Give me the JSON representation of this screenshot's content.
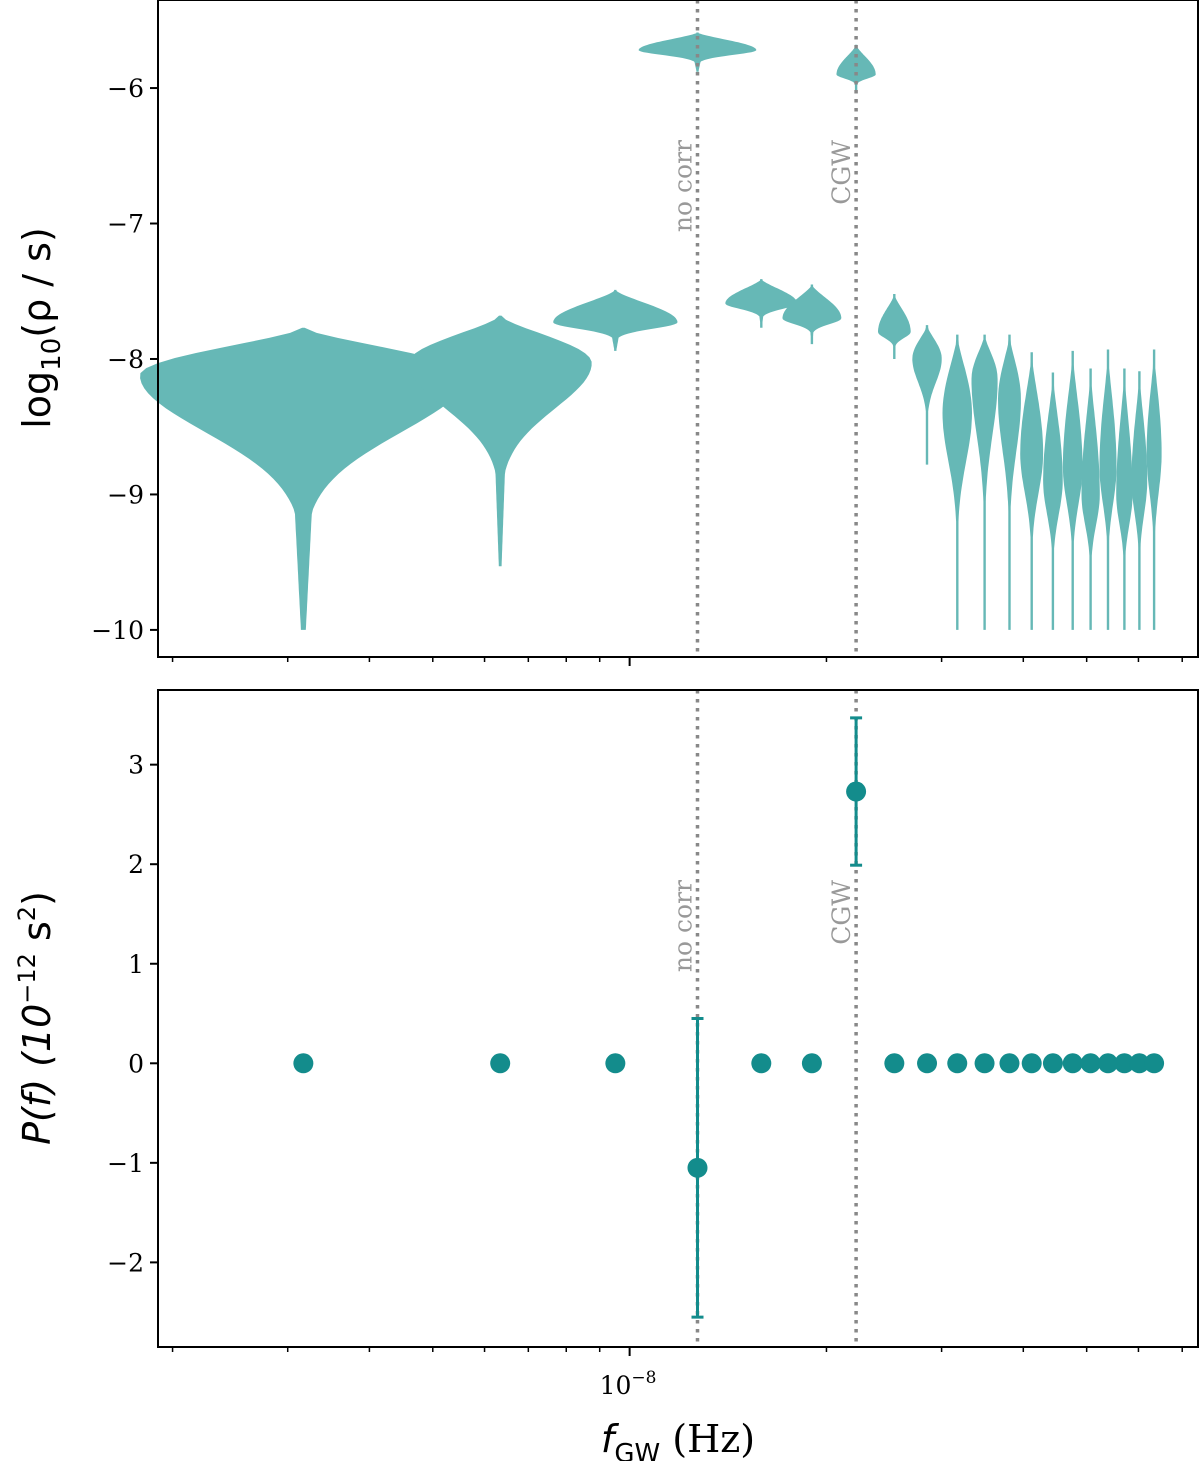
{
  "chart_data": [
    {
      "panel": "top",
      "type": "violin",
      "ylabel": "log10(ρ / s)",
      "ylabel_main": "log",
      "ylabel_sub": "10",
      "ylabel_rest": "(ρ / s)",
      "ylim": [
        -10.2,
        -5.35
      ],
      "yticks": [
        -6,
        -7,
        -8,
        -9,
        -10
      ],
      "ytick_labels": [
        "−6",
        "−7",
        "−8",
        "−9",
        "−10"
      ],
      "color": "#66b8b6",
      "violins": [
        {
          "f": 3.17e-09,
          "top": -7.77,
          "peak": -8.12,
          "bottom": -10.0,
          "width": 0.5
        },
        {
          "f": 6.34e-09,
          "top": -7.68,
          "peak": -8.03,
          "bottom": -9.53,
          "width": 0.28
        },
        {
          "f": 9.51e-09,
          "top": -7.49,
          "peak": -7.73,
          "bottom": -7.94,
          "width": 0.19
        },
        {
          "f": 1.27e-08,
          "top": -5.59,
          "peak": -5.72,
          "bottom": -5.88,
          "width": 0.18
        },
        {
          "f": 1.59e-08,
          "top": -7.41,
          "peak": -7.59,
          "bottom": -7.77,
          "width": 0.11
        },
        {
          "f": 1.9e-08,
          "top": -7.45,
          "peak": -7.7,
          "bottom": -7.89,
          "width": 0.09
        },
        {
          "f": 2.22e-08,
          "top": -5.68,
          "peak": -5.9,
          "bottom": -6.03,
          "width": 0.06
        },
        {
          "f": 2.54e-08,
          "top": -7.52,
          "peak": -7.8,
          "bottom": -8.0,
          "width": 0.05
        },
        {
          "f": 2.85e-08,
          "top": -7.75,
          "peak": -8.0,
          "bottom": -8.78,
          "width": 0.045
        },
        {
          "f": 3.17e-08,
          "top": -7.82,
          "peak": -8.4,
          "bottom": -10.0,
          "width": 0.045
        },
        {
          "f": 3.49e-08,
          "top": -7.82,
          "peak": -8.15,
          "bottom": -10.0,
          "width": 0.04
        },
        {
          "f": 3.81e-08,
          "top": -7.82,
          "peak": -8.3,
          "bottom": -10.0,
          "width": 0.035
        },
        {
          "f": 4.12e-08,
          "top": -7.95,
          "peak": -8.7,
          "bottom": -10.0,
          "width": 0.035
        },
        {
          "f": 4.44e-08,
          "top": -8.1,
          "peak": -8.9,
          "bottom": -10.0,
          "width": 0.03
        },
        {
          "f": 4.76e-08,
          "top": -7.94,
          "peak": -8.8,
          "bottom": -10.0,
          "width": 0.03
        },
        {
          "f": 5.07e-08,
          "top": -8.07,
          "peak": -9.0,
          "bottom": -10.0,
          "width": 0.028
        },
        {
          "f": 5.39e-08,
          "top": -7.93,
          "peak": -8.8,
          "bottom": -10.0,
          "width": 0.026
        },
        {
          "f": 5.71e-08,
          "top": -8.07,
          "peak": -9.0,
          "bottom": -10.0,
          "width": 0.025
        },
        {
          "f": 6.02e-08,
          "top": -8.09,
          "peak": -8.9,
          "bottom": -10.0,
          "width": 0.024
        },
        {
          "f": 6.34e-08,
          "top": -7.93,
          "peak": -8.7,
          "bottom": -10.0,
          "width": 0.023
        }
      ]
    },
    {
      "panel": "bottom",
      "type": "scatter",
      "ylabel": "P(f) (10^-12 s^2)",
      "ylabel_main": "P(f) (10",
      "ylabel_exp": "−12",
      "ylabel_mid": " s",
      "ylabel_exp2": "2",
      "ylabel_end": ")",
      "xlabel": "f_GW (Hz)",
      "xlabel_main": "f",
      "xlabel_sub": "GW",
      "xlabel_rest": " (Hz)",
      "ylim": [
        -2.85,
        3.75
      ],
      "yticks": [
        3,
        2,
        1,
        0,
        -1,
        -2
      ],
      "ytick_labels": [
        "3",
        "2",
        "1",
        "0",
        "−1",
        "−2"
      ],
      "xtick_base": "10",
      "xtick_exp": "−8",
      "color": "#138c8c",
      "points": [
        {
          "f": 3.17e-09,
          "y": 0
        },
        {
          "f": 6.34e-09,
          "y": 0
        },
        {
          "f": 9.51e-09,
          "y": 0
        },
        {
          "f": 1.27e-08,
          "y": -1.05,
          "err_low": -2.55,
          "err_high": 0.45
        },
        {
          "f": 1.59e-08,
          "y": 0
        },
        {
          "f": 1.9e-08,
          "y": 0
        },
        {
          "f": 2.22e-08,
          "y": 2.73,
          "err_low": 1.99,
          "err_high": 3.47
        },
        {
          "f": 2.54e-08,
          "y": 0
        },
        {
          "f": 2.85e-08,
          "y": 0
        },
        {
          "f": 3.17e-08,
          "y": 0
        },
        {
          "f": 3.49e-08,
          "y": 0
        },
        {
          "f": 3.81e-08,
          "y": 0
        },
        {
          "f": 4.12e-08,
          "y": 0
        },
        {
          "f": 4.44e-08,
          "y": 0
        },
        {
          "f": 4.76e-08,
          "y": 0
        },
        {
          "f": 5.07e-08,
          "y": 0
        },
        {
          "f": 5.39e-08,
          "y": 0
        },
        {
          "f": 5.71e-08,
          "y": 0
        },
        {
          "f": 6.02e-08,
          "y": 0
        },
        {
          "f": 6.34e-08,
          "y": 0
        }
      ]
    }
  ],
  "xlim": [
    1.9e-09,
    7.4e-08
  ],
  "xlog": true,
  "vlines": [
    {
      "f": 1.27e-08,
      "label": "no corr"
    },
    {
      "f": 2.22e-08,
      "label": "CGW"
    }
  ],
  "vline_color": "#888888"
}
